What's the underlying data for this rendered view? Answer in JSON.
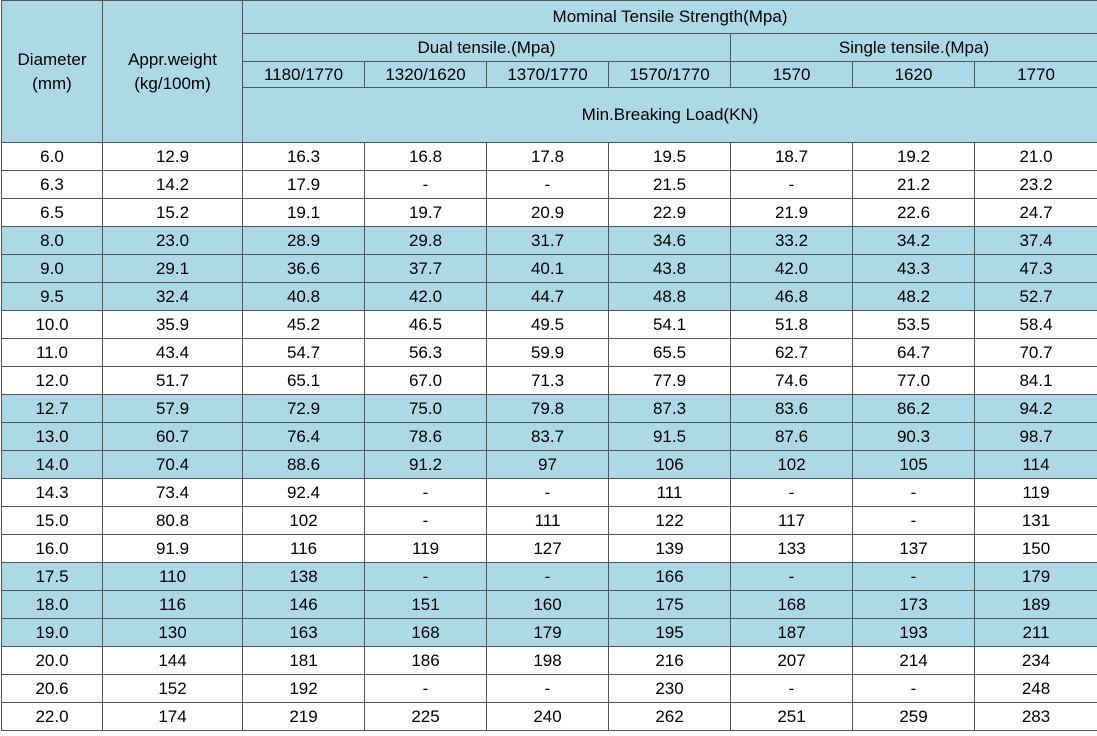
{
  "header": {
    "diameter_line1": "Diameter",
    "diameter_line2": "(mm)",
    "weight_line1": "Appr.weight",
    "weight_line2": "(kg/100m)",
    "tensile_title": "Mominal Tensile Strength(Mpa)",
    "dual_title": "Dual tensile.(Mpa)",
    "single_title": "Single tensile.(Mpa)",
    "grades": [
      "1180/1770",
      "1320/1620",
      "1370/1770",
      "1570/1770",
      "1570",
      "1620",
      "1770"
    ],
    "load_title": "Min.Breaking Load(KN)"
  },
  "rows": [
    {
      "band": false,
      "cells": [
        "6.0",
        "12.9",
        "16.3",
        "16.8",
        "17.8",
        "19.5",
        "18.7",
        "19.2",
        "21.0"
      ]
    },
    {
      "band": false,
      "cells": [
        "6.3",
        "14.2",
        "17.9",
        "-",
        "-",
        "21.5",
        "-",
        "21.2",
        "23.2"
      ]
    },
    {
      "band": false,
      "cells": [
        "6.5",
        "15.2",
        "19.1",
        "19.7",
        "20.9",
        "22.9",
        "21.9",
        "22.6",
        "24.7"
      ]
    },
    {
      "band": true,
      "cells": [
        "8.0",
        "23.0",
        "28.9",
        "29.8",
        "31.7",
        "34.6",
        "33.2",
        "34.2",
        "37.4"
      ]
    },
    {
      "band": true,
      "cells": [
        "9.0",
        "29.1",
        "36.6",
        "37.7",
        "40.1",
        "43.8",
        "42.0",
        "43.3",
        "47.3"
      ]
    },
    {
      "band": true,
      "cells": [
        "9.5",
        "32.4",
        "40.8",
        "42.0",
        "44.7",
        "48.8",
        "46.8",
        "48.2",
        "52.7"
      ]
    },
    {
      "band": false,
      "cells": [
        "10.0",
        "35.9",
        "45.2",
        "46.5",
        "49.5",
        "54.1",
        "51.8",
        "53.5",
        "58.4"
      ]
    },
    {
      "band": false,
      "cells": [
        "11.0",
        "43.4",
        "54.7",
        "56.3",
        "59.9",
        "65.5",
        "62.7",
        "64.7",
        "70.7"
      ]
    },
    {
      "band": false,
      "cells": [
        "12.0",
        "51.7",
        "65.1",
        "67.0",
        "71.3",
        "77.9",
        "74.6",
        "77.0",
        "84.1"
      ]
    },
    {
      "band": true,
      "cells": [
        "12.7",
        "57.9",
        "72.9",
        "75.0",
        "79.8",
        "87.3",
        "83.6",
        "86.2",
        "94.2"
      ]
    },
    {
      "band": true,
      "cells": [
        "13.0",
        "60.7",
        "76.4",
        "78.6",
        "83.7",
        "91.5",
        "87.6",
        "90.3",
        "98.7"
      ]
    },
    {
      "band": true,
      "cells": [
        "14.0",
        "70.4",
        "88.6",
        "91.2",
        "97",
        "106",
        "102",
        "105",
        "114"
      ]
    },
    {
      "band": false,
      "cells": [
        "14.3",
        "73.4",
        "92.4",
        "-",
        "-",
        "111",
        "-",
        "-",
        "119"
      ]
    },
    {
      "band": false,
      "cells": [
        "15.0",
        "80.8",
        "102",
        "-",
        "111",
        "122",
        "117",
        "-",
        "131"
      ]
    },
    {
      "band": false,
      "cells": [
        "16.0",
        "91.9",
        "116",
        "119",
        "127",
        "139",
        "133",
        "137",
        "150"
      ]
    },
    {
      "band": true,
      "cells": [
        "17.5",
        "110",
        "138",
        "-",
        "-",
        "166",
        "-",
        "-",
        "179"
      ]
    },
    {
      "band": true,
      "cells": [
        "18.0",
        "116",
        "146",
        "151",
        "160",
        "175",
        "168",
        "173",
        "189"
      ]
    },
    {
      "band": true,
      "cells": [
        "19.0",
        "130",
        "163",
        "168",
        "179",
        "195",
        "187",
        "193",
        "211"
      ]
    },
    {
      "band": false,
      "cells": [
        "20.0",
        "144",
        "181",
        "186",
        "198",
        "216",
        "207",
        "214",
        "234"
      ]
    },
    {
      "band": false,
      "cells": [
        "20.6",
        "152",
        "192",
        "-",
        "-",
        "230",
        "-",
        "-",
        "248"
      ]
    },
    {
      "band": false,
      "cells": [
        "22.0",
        "174",
        "219",
        "225",
        "240",
        "262",
        "251",
        "259",
        "283"
      ]
    }
  ],
  "colors": {
    "header_band": "#add8e6",
    "border": "#555555"
  }
}
